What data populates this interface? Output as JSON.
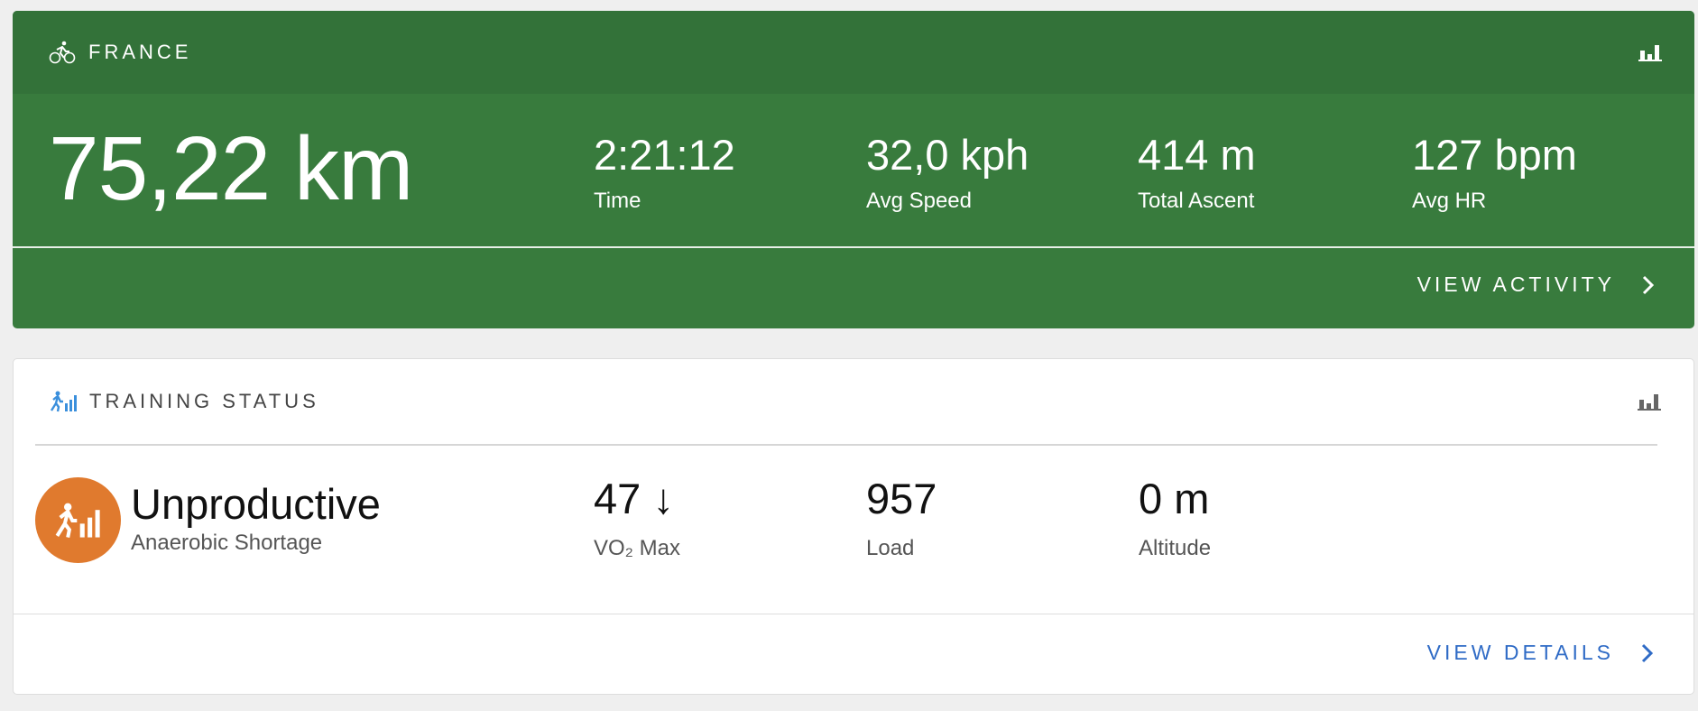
{
  "activity": {
    "title": "FRANCE",
    "icon": "bicycle-icon",
    "distance": "75,22 km",
    "stats": [
      {
        "value": "2:21:12",
        "label": "Time"
      },
      {
        "value": "32,0 kph",
        "label": "Avg Speed"
      },
      {
        "value": "414 m",
        "label": "Total Ascent"
      },
      {
        "value": "127 bpm",
        "label": "Avg HR"
      }
    ],
    "link": "VIEW ACTIVITY",
    "colors": {
      "header": "#337239",
      "body": "#387b3d"
    }
  },
  "training": {
    "title": "TRAINING STATUS",
    "icon": "training-status-icon",
    "status": "Unproductive",
    "substatus": "Anaerobic Shortage",
    "stats": [
      {
        "value": "47",
        "trend": "↓",
        "label": "VO₂ Max"
      },
      {
        "value": "957",
        "label": "Load"
      },
      {
        "value": "0 m",
        "label": "Altitude"
      }
    ],
    "link": "VIEW DETAILS",
    "colors": {
      "badge": "#e07a2e",
      "link": "#2f6bc6",
      "icon": "#3a8fdc"
    }
  }
}
